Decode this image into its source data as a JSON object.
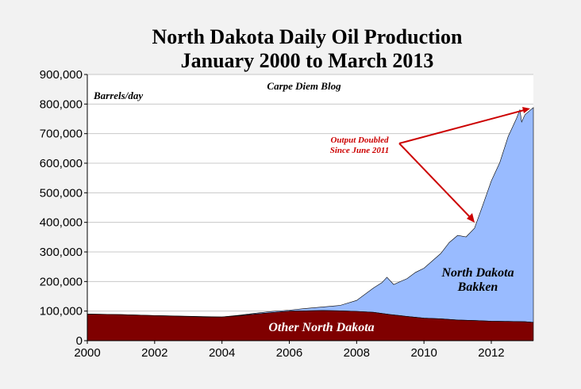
{
  "chart_data": {
    "type": "area",
    "title": "North Dakota Daily Oil Production",
    "subtitle": "January 2000 to March 2013",
    "ylabel": "Barrels/day",
    "source": "Carpe Diem Blog",
    "xlim": [
      2000,
      2013.25
    ],
    "ylim": [
      0,
      900000
    ],
    "x_ticks": [
      "2000",
      "2002",
      "2004",
      "2006",
      "2008",
      "2010",
      "2012"
    ],
    "y_ticks": [
      "0",
      "100,000",
      "200,000",
      "300,000",
      "400,000",
      "500,000",
      "600,000",
      "700,000",
      "800,000",
      "900,000"
    ],
    "grid": "horizontal",
    "series": [
      {
        "name": "Other North Dakota",
        "color": "#7f0000",
        "points": [
          [
            2000.0,
            90000
          ],
          [
            2001.0,
            88000
          ],
          [
            2002.0,
            85000
          ],
          [
            2003.0,
            82000
          ],
          [
            2003.5,
            80000
          ],
          [
            2004.0,
            80000
          ],
          [
            2004.5,
            84000
          ],
          [
            2005.0,
            90000
          ],
          [
            2005.5,
            95000
          ],
          [
            2006.0,
            100000
          ],
          [
            2006.5,
            101000
          ],
          [
            2007.0,
            102000
          ],
          [
            2007.5,
            101000
          ],
          [
            2008.0,
            99000
          ],
          [
            2008.5,
            96000
          ],
          [
            2009.0,
            88000
          ],
          [
            2009.5,
            82000
          ],
          [
            2010.0,
            76000
          ],
          [
            2010.5,
            74000
          ],
          [
            2011.0,
            70000
          ],
          [
            2011.5,
            68000
          ],
          [
            2012.0,
            66000
          ],
          [
            2012.5,
            65000
          ],
          [
            2013.0,
            64000
          ],
          [
            2013.25,
            62000
          ]
        ]
      },
      {
        "name": "North Dakota Bakken",
        "color": "#99bbff",
        "points": [
          [
            2000.0,
            0
          ],
          [
            2004.0,
            0
          ],
          [
            2004.5,
            2000
          ],
          [
            2005.0,
            3000
          ],
          [
            2005.5,
            4000
          ],
          [
            2006.0,
            3000
          ],
          [
            2006.5,
            8000
          ],
          [
            2007.0,
            12000
          ],
          [
            2007.5,
            18000
          ],
          [
            2008.0,
            37000
          ],
          [
            2008.5,
            82000
          ],
          [
            2008.75,
            104000
          ],
          [
            2008.9,
            125000
          ],
          [
            2009.1,
            103000
          ],
          [
            2009.5,
            128000
          ],
          [
            2009.75,
            152000
          ],
          [
            2010.0,
            169000
          ],
          [
            2010.5,
            221000
          ],
          [
            2010.75,
            260000
          ],
          [
            2011.0,
            286000
          ],
          [
            2011.25,
            282000
          ],
          [
            2011.5,
            312000
          ],
          [
            2011.75,
            392000
          ],
          [
            2012.0,
            474000
          ],
          [
            2012.25,
            536000
          ],
          [
            2012.5,
            625000
          ],
          [
            2012.75,
            687000
          ],
          [
            2012.85,
            717000
          ],
          [
            2012.9,
            675000
          ],
          [
            2013.0,
            700000
          ],
          [
            2013.25,
            726000
          ]
        ]
      }
    ],
    "annotations": [
      {
        "text": "Output Doubled",
        "color": "#cc0000"
      },
      {
        "text": "Since June 2011",
        "color": "#cc0000"
      },
      {
        "text": "North Dakota",
        "color": "#000000"
      },
      {
        "text": "Bakken",
        "color": "#000000"
      },
      {
        "text": "Other North Dakota",
        "color": "#ffffff"
      }
    ]
  }
}
